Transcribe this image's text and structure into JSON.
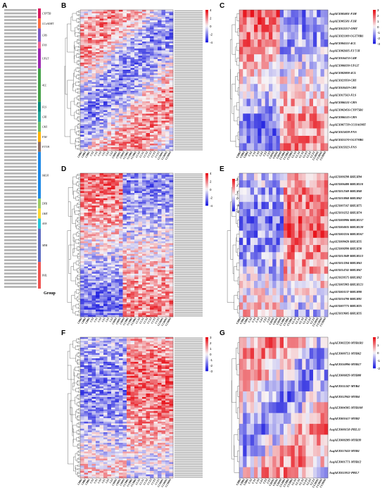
{
  "panels": [
    "A",
    "B",
    "C",
    "D",
    "E",
    "F",
    "G"
  ],
  "samples": [
    "CHB3",
    "CHB2",
    "CHB1",
    "CA2",
    "CA1",
    "CA3",
    "CZ1",
    "CZ2",
    "CZ3",
    "CHM2",
    "CHM1",
    "CHM3",
    "CCHB1",
    "CCHB2",
    "CCHB3",
    "CCA3",
    "CCA1",
    "CCA2",
    "CCZ3",
    "CCZ2",
    "CCZ1",
    "CCHM1",
    "CCHM2",
    "CCHM3"
  ],
  "legend_colors": {
    "high": "#e8141c",
    "mid": "#f7f4f6",
    "low": "#2121e0"
  },
  "panel_a": {
    "group_label": "Group",
    "families": [
      {
        "name": "CYP75B",
        "color": "#d81b60",
        "rows": 3
      },
      {
        "name": "CCoAOMT",
        "color": "#ff7043",
        "rows": 3
      },
      {
        "name": "CHS",
        "color": "#7e57c2",
        "rows": 4
      },
      {
        "name": "FNS",
        "color": "#f06292",
        "rows": 2
      },
      {
        "name": "UFGT",
        "color": "#9c27b0",
        "rows": 6
      },
      {
        "name": "4CL",
        "color": "#43a047",
        "rows": 10
      },
      {
        "name": "FLS",
        "color": "#00897b",
        "rows": 3
      },
      {
        "name": "CHI",
        "color": "#26a69a",
        "rows": 3
      },
      {
        "name": "C4H",
        "color": "#66bb6a",
        "rows": 3
      },
      {
        "name": "F3H",
        "color": "#ffb300",
        "rows": 3
      },
      {
        "name": "F3'5'H",
        "color": "#8d6e63",
        "rows": 3
      },
      {
        "name": "bHLH",
        "color": "#1e88e5",
        "rows": 14
      },
      {
        "name": "DFR",
        "color": "#9ccc65",
        "rows": 3
      },
      {
        "name": "OMT",
        "color": "#fdd835",
        "rows": 3
      },
      {
        "name": "ANS",
        "color": "#26c6da",
        "rows": 3
      },
      {
        "name": "MYB",
        "color": "#5c6bc0",
        "rows": 10
      },
      {
        "name": "PHL",
        "color": "#ef5350",
        "rows": 8
      }
    ]
  },
  "panel_b": {
    "legend_ticks": [
      "4",
      "2",
      "0",
      "-2",
      "-4"
    ]
  },
  "panel_c": {
    "legend_ticks": [
      "3",
      "2",
      "1",
      "0",
      "-1",
      "-2",
      "-3"
    ],
    "genes": [
      "AsqAEX005801-F3H",
      "AsqAEX005581-F3H",
      "AsqAEX012257-OMT",
      "AsqAEX021109-UGT78B1",
      "AsqAEX004113-4CL",
      "AsqAEX002605-F3'5'H",
      "AsqAEX016474-C4H",
      "AsqAEX006030-UFGT",
      "AsqAEX002800-4CL",
      "AsqAEX021950-CHI",
      "AsqAEX010419-CHI",
      "AsqAEX017563-FLS",
      "AsqAEX006531-CHS",
      "AsqAEX002456-CYP75B1",
      "AsqAEX006535-CHS",
      "AsqAEX007739-CCOAOMT",
      "AsqAEX015828-FNS",
      "AsqAEX021170-UGT78B1",
      "AsqAEX015923-FNS"
    ]
  },
  "panel_d": {
    "legend_ticks": [
      "4",
      "2",
      "0",
      "-2",
      "-4"
    ]
  },
  "panel_e": {
    "legend_ticks": [
      "3",
      "2",
      "1",
      "0",
      "-1",
      "-2"
    ],
    "genes": [
      "AsqAEX000298-BHLH94",
      "AsqAEX006480-BHLH110",
      "AsqAEX012569-BHLH68",
      "AsqAEX010868-BHLH62",
      "AsqAEX007167-BHLH75",
      "AsqAEX016352-BHLH74",
      "AsqAEX000986-BHLH157",
      "AsqAEX004035-BHLH128",
      "AsqAEX003216-BHLH167",
      "AsqAEX008420-BHLH35",
      "AsqAEX006990-BHLH30",
      "AsqAEX013049-BHLH113",
      "AsqAEX013204-BHLH63",
      "AsqAEX014741-BHLH67",
      "AsqAEX020575-BHLH62",
      "AsqAEX005983-BHLH121",
      "AsqAEX003137-BHLH80",
      "AsqAEX016790-BHLH81",
      "AsqAEX007775-BHLH25",
      "AsqAEX019605-BHLH35"
    ]
  },
  "panel_f": {
    "legend_ticks": [
      "3",
      "2",
      "1",
      "0",
      "-1",
      "-2",
      "-3"
    ]
  },
  "panel_g": {
    "legend_ticks": [
      "2",
      "1",
      "0",
      "-1",
      "-2"
    ],
    "genes": [
      "AsqAEX002220-MYB1R1",
      "AsqAEX000751-MYB62",
      "AsqAEX016996-MYB17",
      "AsqAEX006829-MYB88",
      "AsqAEX011347-MYB4",
      "AsqAEX012943-MYB4",
      "AsqAEX004305-MYB108",
      "AsqAEX001617-MYB2",
      "AsqAEX000158-PHL11",
      "AsqAEX000289-MYB39",
      "AsqAEX017633-MYB1",
      "AsqAEX001771-MYB12",
      "AsqAEX015912-PHL7"
    ]
  }
}
